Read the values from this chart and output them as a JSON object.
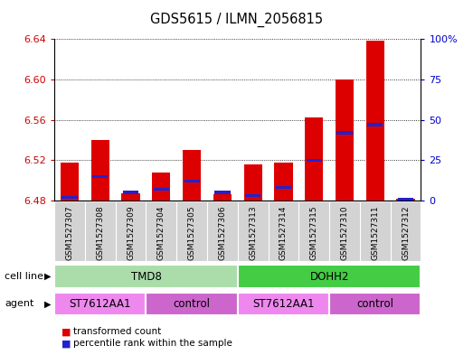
{
  "title": "GDS5615 / ILMN_2056815",
  "samples": [
    "GSM1527307",
    "GSM1527308",
    "GSM1527309",
    "GSM1527304",
    "GSM1527305",
    "GSM1527306",
    "GSM1527313",
    "GSM1527314",
    "GSM1527315",
    "GSM1527310",
    "GSM1527311",
    "GSM1527312"
  ],
  "transformed_count": [
    6.518,
    6.54,
    6.487,
    6.508,
    6.53,
    6.486,
    6.516,
    6.518,
    6.562,
    6.6,
    6.638,
    6.482
  ],
  "percentile_rank": [
    2,
    15,
    5,
    7,
    12,
    5,
    3,
    8,
    25,
    42,
    47,
    1
  ],
  "ylim_left": [
    6.48,
    6.64
  ],
  "ylim_right": [
    0,
    100
  ],
  "yticks_left": [
    6.48,
    6.52,
    6.56,
    6.6,
    6.64
  ],
  "yticks_right": [
    0,
    25,
    50,
    75,
    100
  ],
  "ytick_labels_right": [
    "0",
    "25",
    "50",
    "75",
    "100%"
  ],
  "bar_bottom": 6.48,
  "bar_color_red": "#dd0000",
  "bar_color_blue": "#2222cc",
  "cell_line_groups": [
    {
      "label": "TMD8",
      "start": 0,
      "end": 5,
      "color": "#aaddaa"
    },
    {
      "label": "DOHH2",
      "start": 6,
      "end": 11,
      "color": "#44cc44"
    }
  ],
  "agent_groups": [
    {
      "label": "ST7612AA1",
      "start": 0,
      "end": 2,
      "color": "#ee88ee"
    },
    {
      "label": "control",
      "start": 3,
      "end": 5,
      "color": "#cc66cc"
    },
    {
      "label": "ST7612AA1",
      "start": 6,
      "end": 8,
      "color": "#ee88ee"
    },
    {
      "label": "control",
      "start": 9,
      "end": 11,
      "color": "#cc66cc"
    }
  ],
  "legend_red": "transformed count",
  "legend_blue": "percentile rank within the sample",
  "left_tick_color": "#cc0000",
  "right_tick_color": "#0000cc",
  "sample_bg": "#d3d3d3"
}
